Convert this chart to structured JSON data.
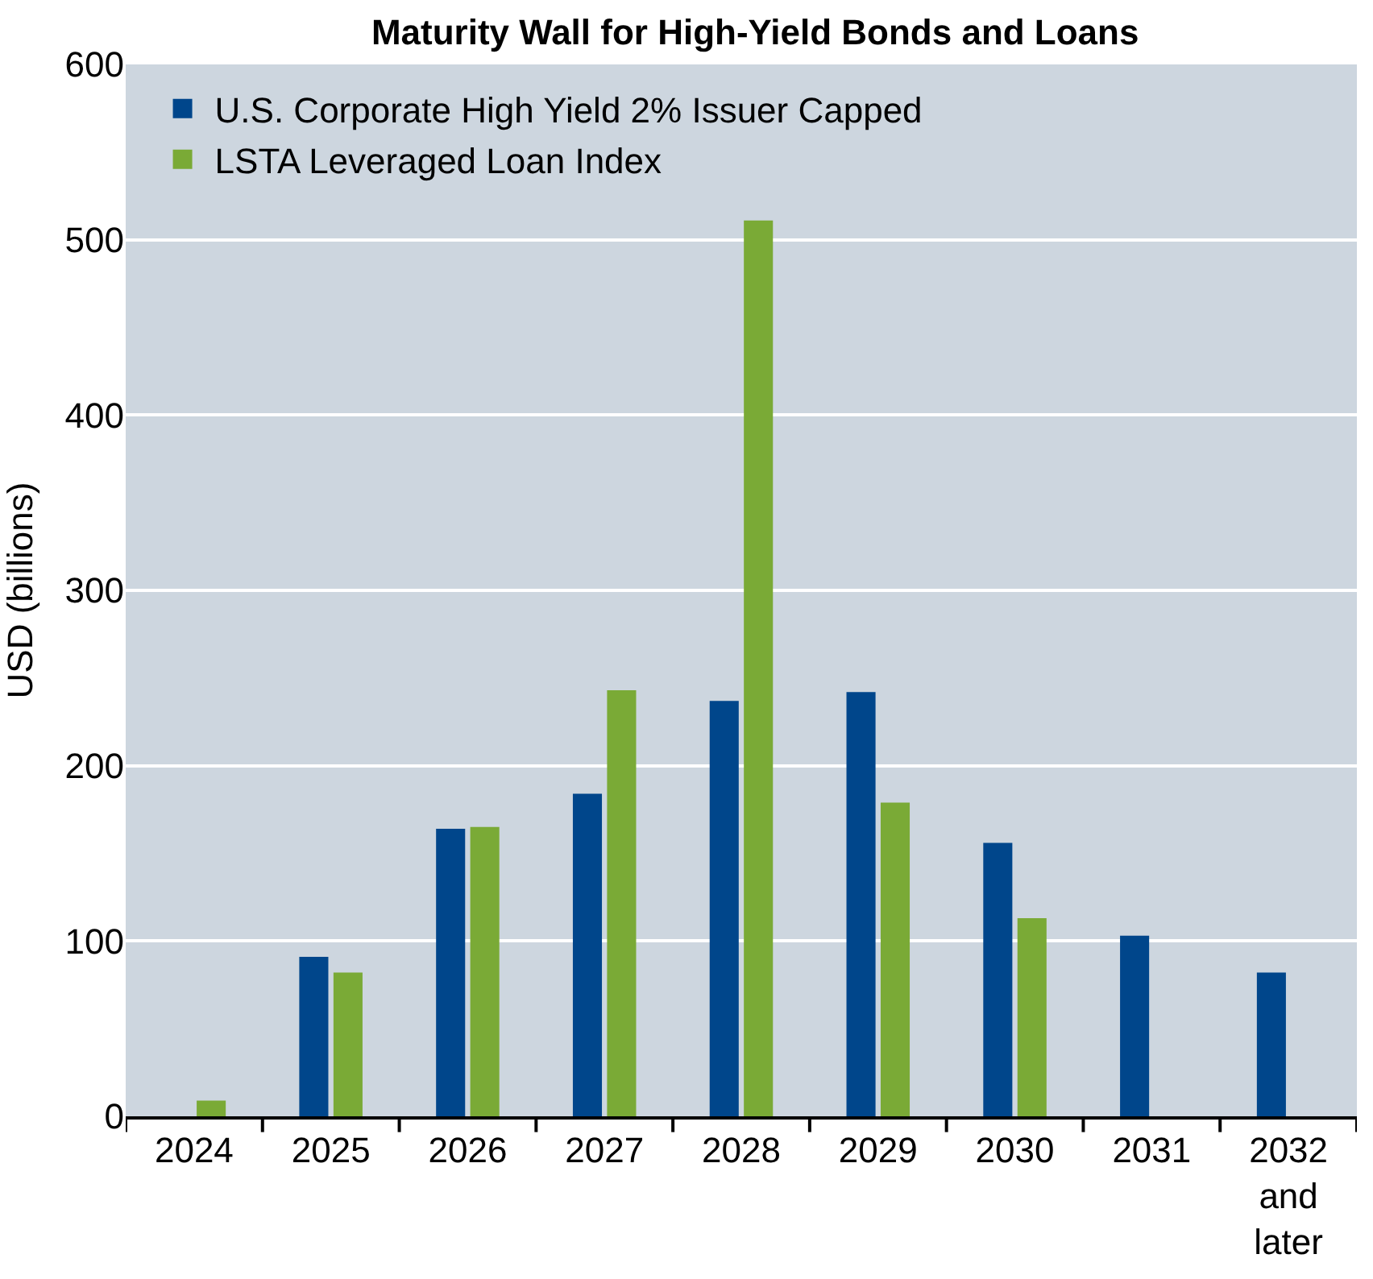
{
  "chart_data": {
    "type": "bar",
    "title": "Maturity Wall for High-Yield Bonds and Loans",
    "ylabel": "USD (billions)",
    "categories": [
      "2024",
      "2025",
      "2026",
      "2027",
      "2028",
      "2029",
      "2030",
      "2031",
      "2032\nand\nlater"
    ],
    "series": [
      {
        "name": "U.S. Corporate High Yield 2% Issuer Capped",
        "color": "#00468b",
        "values": [
          null,
          91,
          164,
          184,
          237,
          242,
          156,
          103,
          82
        ]
      },
      {
        "name": "LSTA Leveraged Loan Index",
        "color": "#7aaa36",
        "values": [
          9,
          82,
          165,
          243,
          511,
          179,
          113,
          null,
          null
        ]
      }
    ],
    "ylim": [
      0,
      600
    ],
    "yticks": [
      0,
      100,
      200,
      300,
      400,
      500,
      600
    ],
    "grid": "y",
    "legend": "top left"
  }
}
